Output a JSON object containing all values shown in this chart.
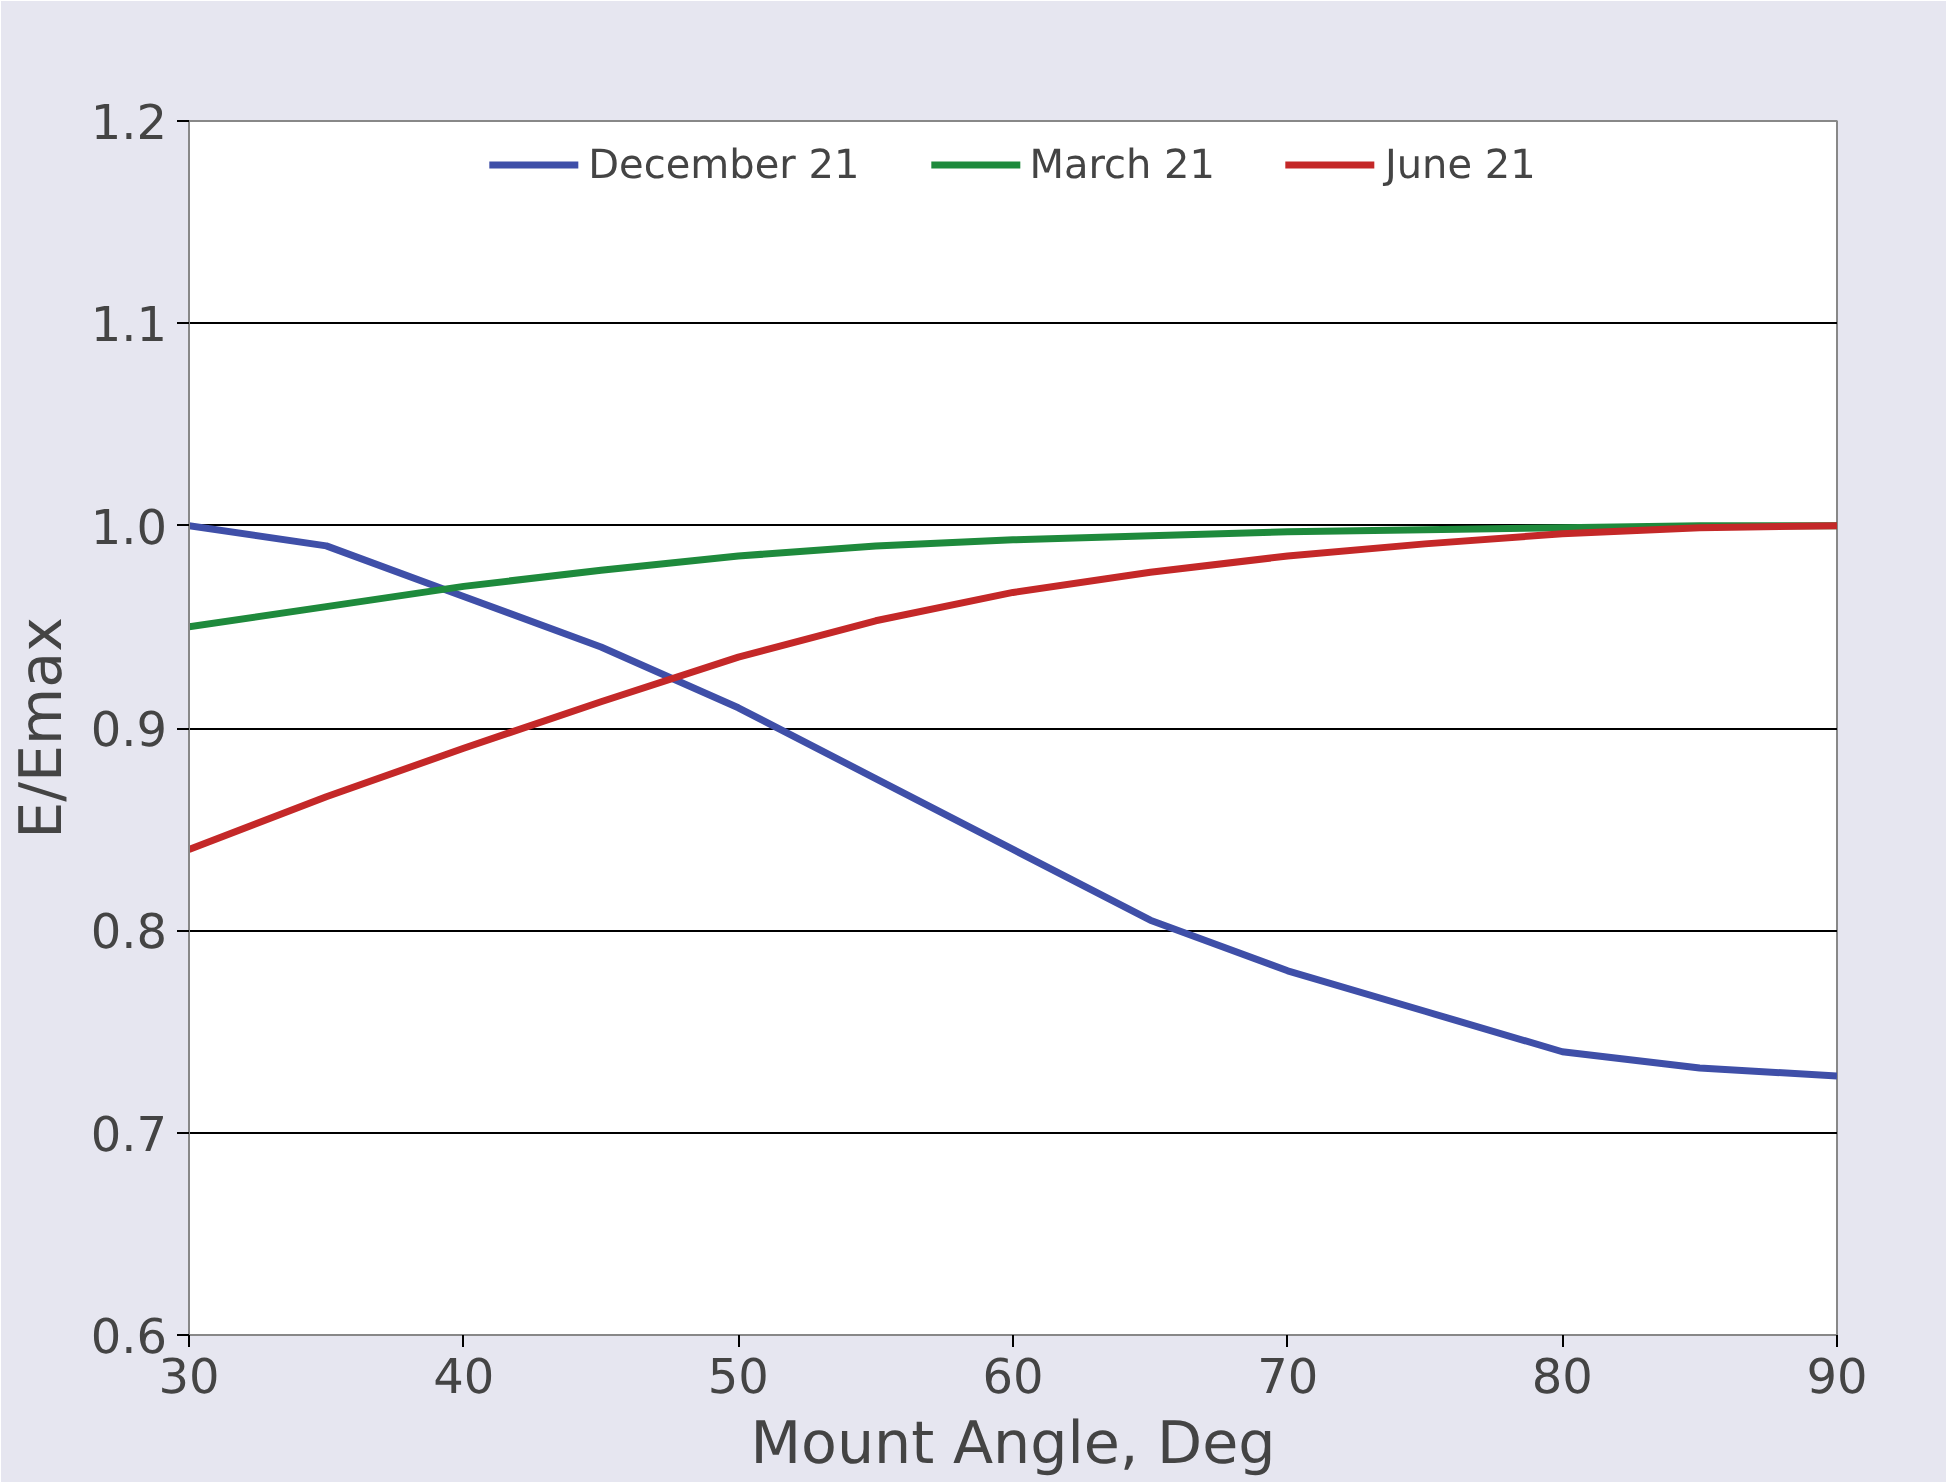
{
  "chart_data": {
    "type": "line",
    "xlabel": "Mount Angle, Deg",
    "ylabel": "E/Emax",
    "xlim": [
      30,
      90
    ],
    "ylim": [
      0.6,
      1.2
    ],
    "xticks": [
      30,
      40,
      50,
      60,
      70,
      80,
      90
    ],
    "yticks": [
      {
        "value": 0.6,
        "label": "0.6"
      },
      {
        "value": 0.7,
        "label": "0.7"
      },
      {
        "value": 0.8,
        "label": "0.8"
      },
      {
        "value": 0.9,
        "label": "0.9"
      },
      {
        "value": 1.0,
        "label": "1.0"
      },
      {
        "value": 1.1,
        "label": "1.1"
      },
      {
        "value": 1.2,
        "label": "1.2"
      }
    ],
    "grid": "y",
    "legend": "top",
    "line_style": "solid",
    "marker": "none",
    "x": [
      30,
      35,
      40,
      45,
      50,
      55,
      60,
      65,
      70,
      75,
      80,
      85,
      90
    ],
    "series": [
      {
        "name": "December 21",
        "color": "#3f4fa8",
        "values": [
          1.0,
          0.99,
          0.965,
          0.94,
          0.91,
          0.875,
          0.84,
          0.805,
          0.78,
          0.76,
          0.74,
          0.732,
          0.728
        ]
      },
      {
        "name": "March 21",
        "color": "#1e8a3c",
        "values": [
          0.95,
          0.96,
          0.97,
          0.978,
          0.985,
          0.99,
          0.993,
          0.995,
          0.997,
          0.998,
          0.999,
          1.0,
          1.0
        ]
      },
      {
        "name": "June 21",
        "color": "#c42828",
        "values": [
          0.84,
          0.866,
          0.89,
          0.913,
          0.935,
          0.953,
          0.967,
          0.977,
          0.985,
          0.991,
          0.996,
          0.999,
          1.0
        ]
      }
    ]
  }
}
